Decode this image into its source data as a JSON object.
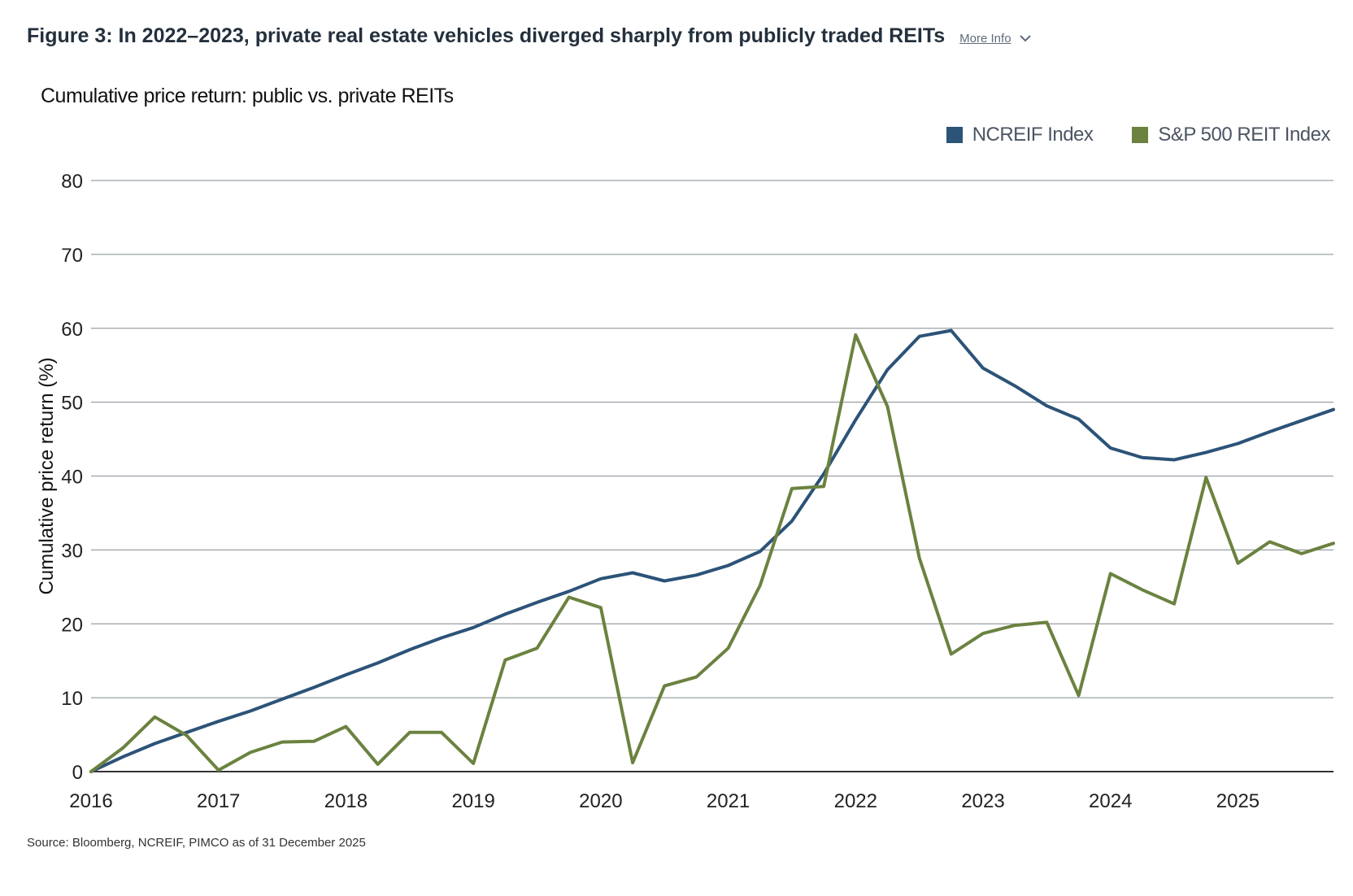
{
  "header": {
    "title": "Figure 3: In 2022–2023, private real estate vehicles diverged sharply from publicly traded REITs",
    "more_info_label": "More Info",
    "more_info_icon": "chevron-down-icon"
  },
  "source": "Source: Bloomberg, NCREIF, PIMCO as of 31 December 2025",
  "colors": {
    "ncreif": "#2c5378",
    "sp500reit": "#6b8240",
    "grid": "#9aa0a6",
    "axis": "#333333"
  },
  "chart_data": {
    "type": "line",
    "title": "Cumulative price return: public vs. private REITs",
    "ylabel": "Cumulative price return (%)",
    "xlabel": "",
    "ylim": [
      0,
      80
    ],
    "yticks": [
      0,
      10,
      20,
      30,
      40,
      50,
      60,
      70,
      80
    ],
    "xlim": [
      2016.0,
      2025.75
    ],
    "xticks": [
      "2016",
      "2017",
      "2018",
      "2019",
      "2020",
      "2021",
      "2022",
      "2023",
      "2024",
      "2025"
    ],
    "grid": true,
    "legend_position": "top-right",
    "x": [
      2016.0,
      2016.25,
      2016.5,
      2016.75,
      2017.0,
      2017.25,
      2017.5,
      2017.75,
      2018.0,
      2018.25,
      2018.5,
      2018.75,
      2019.0,
      2019.25,
      2019.5,
      2019.75,
      2020.0,
      2020.25,
      2020.5,
      2020.75,
      2021.0,
      2021.25,
      2021.5,
      2021.75,
      2022.0,
      2022.25,
      2022.5,
      2022.75,
      2023.0,
      2023.25,
      2023.5,
      2023.75,
      2024.0,
      2024.25,
      2024.5,
      2024.75,
      2025.0,
      2025.25,
      2025.5,
      2025.75
    ],
    "series": [
      {
        "name": "NCREIF Index",
        "color": "#2c5378",
        "values": [
          0,
          2.0,
          3.8,
          5.3,
          6.8,
          8.2,
          9.8,
          11.4,
          13.1,
          14.7,
          16.5,
          18.1,
          19.5,
          21.3,
          22.9,
          24.4,
          26.1,
          26.9,
          25.8,
          26.6,
          27.9,
          29.8,
          33.9,
          40.3,
          47.6,
          54.4,
          58.9,
          59.7,
          54.6,
          52.2,
          49.5,
          47.7,
          43.8,
          42.5,
          42.2,
          43.2,
          44.4,
          46.0,
          47.5,
          49.0
        ]
      },
      {
        "name": "S&P 500 REIT Index",
        "color": "#6b8240",
        "values": [
          0,
          3.2,
          7.4,
          4.9,
          0.2,
          2.6,
          4.0,
          4.1,
          6.1,
          1.0,
          5.3,
          5.3,
          1.1,
          15.1,
          16.7,
          23.6,
          22.2,
          1.2,
          11.6,
          12.8,
          16.7,
          25.2,
          38.3,
          38.6,
          59.1,
          49.4,
          28.9,
          15.9,
          18.7,
          19.8,
          20.2,
          10.3,
          26.8,
          24.6,
          22.7,
          39.8,
          28.2,
          31.1,
          29.5,
          30.9
        ]
      }
    ]
  }
}
